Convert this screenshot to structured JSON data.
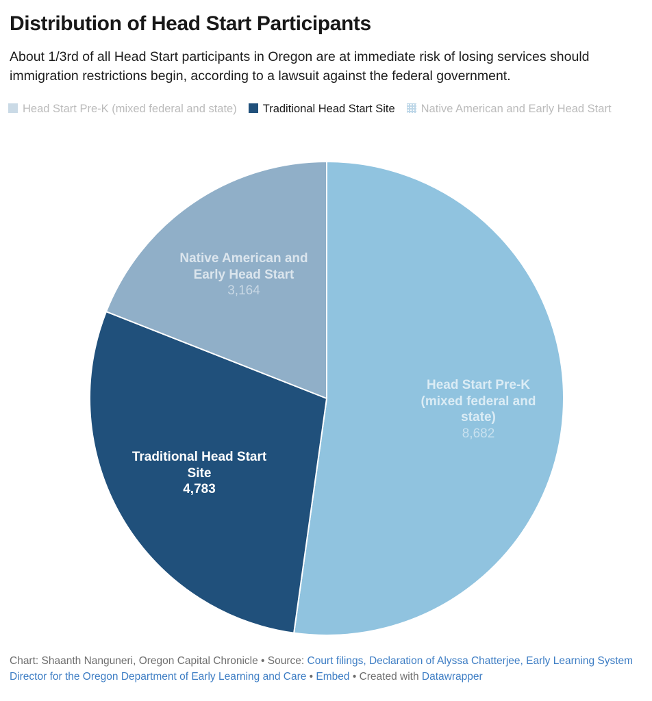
{
  "header": {
    "title": "Distribution of Head Start Participants",
    "subtitle": "About 1/3rd of all Head Start participants in Oregon are at immediate risk of losing services should immigration restrictions begin, according to a lawsuit against the federal government."
  },
  "legend": {
    "items": [
      {
        "label": "Head Start Pre-K (mixed federal and state)",
        "swatch_color": "#cadae6",
        "muted": true,
        "dotted": false
      },
      {
        "label": "Traditional Head Start Site",
        "swatch_color": "#20507b",
        "muted": false,
        "dotted": false
      },
      {
        "label": "Native American and Early Head Start",
        "swatch_color": "#bdd7e8",
        "muted": true,
        "dotted": true
      }
    ]
  },
  "chart_data": {
    "type": "pie",
    "title": "Distribution of Head Start Participants",
    "start_angle": "12 o'clock",
    "direction": "clockwise",
    "legend_position": "top",
    "slices": [
      {
        "label": "Head Start Pre-K (mixed federal and state)",
        "value": 8682,
        "display_value": "8,682",
        "color": "#90c3df",
        "highlighted": false
      },
      {
        "label": "Traditional Head Start Site",
        "value": 4783,
        "display_value": "4,783",
        "color": "#20507b",
        "highlighted": true
      },
      {
        "label": "Native American and Early Head Start",
        "value": 3164,
        "display_value": "3,164",
        "color": "#90afc8",
        "highlighted": false
      }
    ]
  },
  "footer": {
    "link_color": "#3d7dc4",
    "text_color": "#6e6e6e",
    "segments": [
      {
        "text": "Chart: Shaanth Nanguneri, Oregon Capital Chronicle • Source: ",
        "link": false
      },
      {
        "text": "Court filings, Declaration of Alyssa Chatterjee, Early Learning System Director for the Oregon Department of Early Learning and Care",
        "link": true
      },
      {
        "text": "  •  ",
        "link": false
      },
      {
        "text": "Embed",
        "link": true
      },
      {
        "text": "  • Created with ",
        "link": false
      },
      {
        "text": "Datawrapper",
        "link": true
      }
    ]
  }
}
